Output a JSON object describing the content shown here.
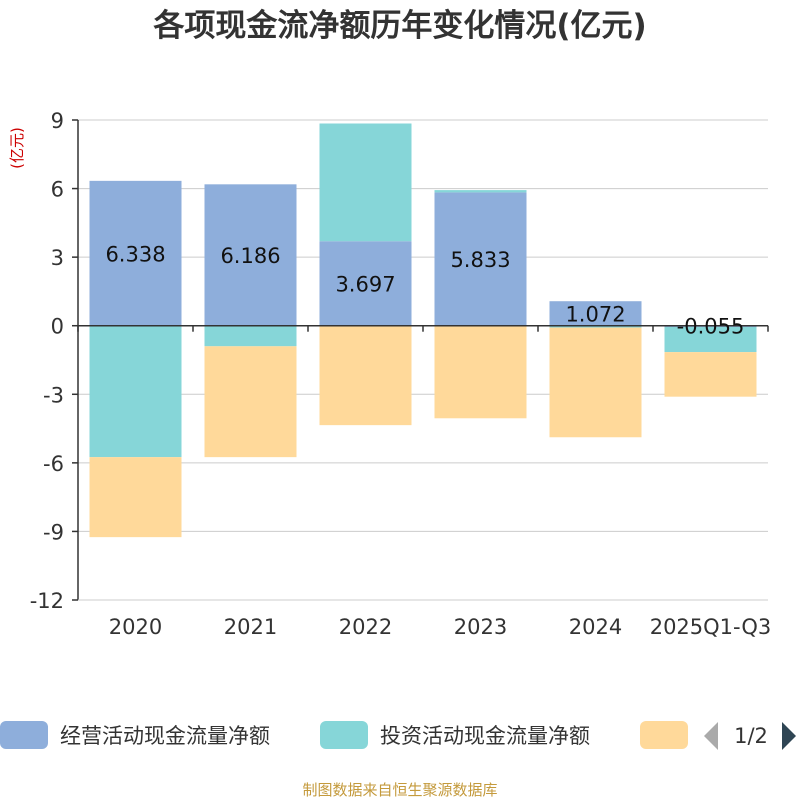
{
  "chart_data": {
    "type": "bar",
    "stacked": true,
    "title": "各项现金流净额历年变化情况(亿元)",
    "ylabel": "(亿元)",
    "xlabel": "",
    "ylim": [
      -12,
      9
    ],
    "yticks": [
      9,
      6,
      3,
      0,
      -3,
      -6,
      -9,
      -12
    ],
    "ytick_labels": [
      "9",
      "6",
      "3",
      "0",
      "-3",
      "-6",
      "-9",
      "-12"
    ],
    "grid": true,
    "categories": [
      "2020",
      "2021",
      "2022",
      "2023",
      "2024",
      "2025Q1-Q3"
    ],
    "series": [
      {
        "name": "经营活动现金流量净额",
        "color": "#8eaedb",
        "values": [
          6.338,
          6.186,
          3.697,
          5.833,
          1.072,
          -0.055
        ]
      },
      {
        "name": "投资活动现金流量净额",
        "color": "#86d6d8",
        "values": [
          -5.75,
          -0.9,
          5.15,
          0.1,
          -0.08,
          -1.1
        ]
      },
      {
        "name": "",
        "color": "#ffd99a",
        "values": [
          -3.5,
          -4.85,
          -4.35,
          -4.05,
          -4.8,
          -1.95
        ]
      }
    ],
    "data_labels": [
      "6.338",
      "6.186",
      "3.697",
      "5.833",
      "1.072",
      "-0.055"
    ],
    "legend_position": "bottom",
    "legend_page": "1/2"
  },
  "colors": {
    "title": "#333333",
    "ylabel": "#cc0000",
    "axis": "#333333",
    "grid": "#cccccc",
    "source": "#c49a3c",
    "pager_prev": "#aaaaaa",
    "pager_next": "#2f4554"
  },
  "icons": {
    "pager_prev": "triangle-left-icon",
    "pager_next": "triangle-right-icon"
  },
  "source_text": "制图数据来自恒生聚源数据库"
}
